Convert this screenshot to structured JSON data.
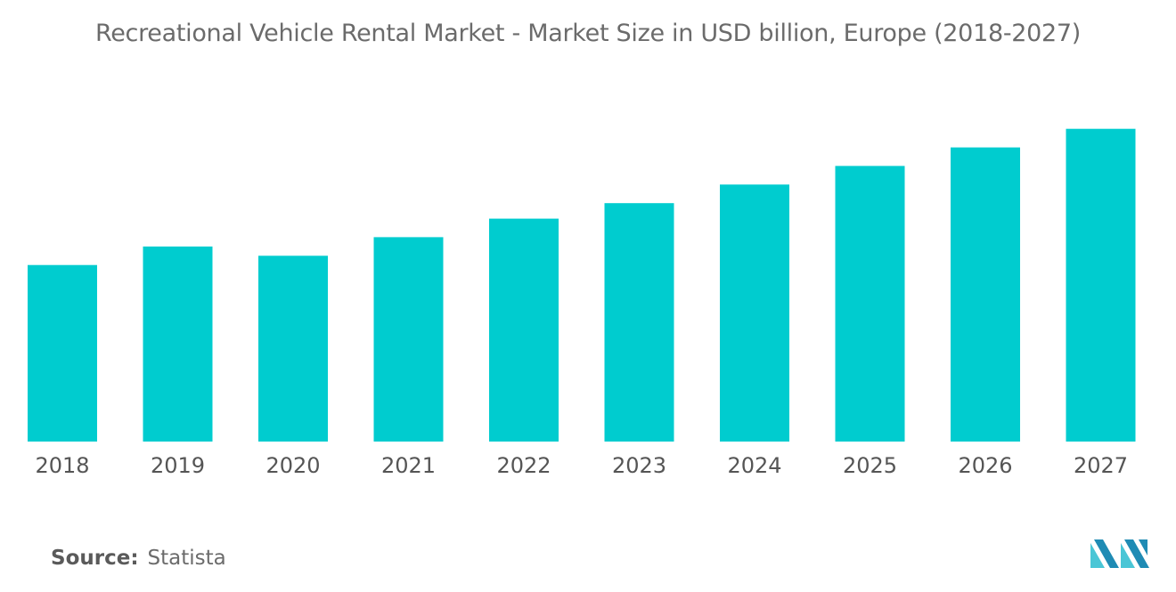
{
  "chart_data": {
    "type": "bar",
    "title": "Recreational Vehicle Rental Market - Market Size in USD billion, Europe (2018-2027)",
    "categories": [
      "2018",
      "2019",
      "2020",
      "2021",
      "2022",
      "2023",
      "2024",
      "2025",
      "2026",
      "2027"
    ],
    "values": [
      5.7,
      6.3,
      6.0,
      6.6,
      7.2,
      7.7,
      8.3,
      8.9,
      9.5,
      10.1
    ],
    "xlabel": "",
    "ylabel": "",
    "ylim": [
      0,
      11.5
    ],
    "grid": false,
    "legend": "none",
    "bar_color": "#00cccf"
  },
  "source": {
    "label": "Source:",
    "value": "Statista"
  },
  "logo": {
    "icon": "mordor-intelligence-logo",
    "colors": [
      "#1f8bb4",
      "#4ac6d6"
    ]
  }
}
